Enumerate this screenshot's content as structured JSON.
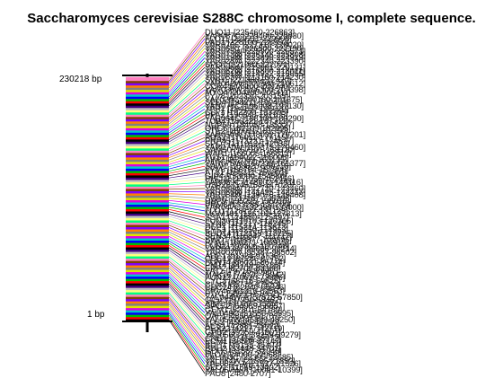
{
  "title": "Saccharomyces cerevisiae S288C chromosome I, complete sequence.",
  "top_bp_label": "230218 bp",
  "bottom_bp_label": "1 bp",
  "features": [
    "PAU8 [2480-2707]",
    "YAL067W-A [10091-10399]",
    "SEO1 [11565-13402]",
    "YAL064C-A [21527-21526]",
    "YAL064W [21566-21850]",
    "YAL063C [22395-22685]",
    "FLO9 [24000-27968]",
    "GDH3 [31567-32940]",
    "BDH2 [33448-34701]",
    "BDH1 [35155-36303]",
    "ECM1 [36509-37147]",
    "CNE1 [37464-38972]",
    "YAL056C-A [39259-39279]",
    "GPB2 [39259-41901]",
    "PEX22 [42177-42719]",
    "ACS1 [42881-45022]",
    "FLC2 [45899-48250]",
    "YAL053W [45899-48250]",
    "OAF1 [48564-51707]",
    "YAL049C [51855-52595]",
    "GEM1 [52801-54789]",
    "SPC72 [54989-56857]",
    "AIM1 [57029-57385]",
    "GCV3 [57950-58462]",
    "YAL044W-A [57518-57850]",
    "PTA1 [58695-61052]",
    "ERV46 [61316-62563]",
    "CDC24 [62840-65346]",
    "CLN3 [65778-67520]",
    "CYC3 [68716-69525]",
    "FUN12 [70620-73886]",
    "MAK16 [74020-75942]",
    "YAT1 [79718-80587]",
    "ERP2 [82709-83360]",
    "PMT4 [84749-85780]",
    "FUN14 [86031-86714]",
    "CDC19 [87286-87752]",
    "ADE1 [91324-93736]",
    "YAR002W [95387-96502]",
    "YAR003W [96806-98214]",
    "FUN21 [99306-100748]",
    "RFA1 [106271-106915]",
    "SWD1 [108877-109896]",
    "SEN34 [110847-111717]",
    "BUD14 [112155-113225]",
    "CYS3 [114250-114963]",
    "DEP1 [115214-115613]",
    "SYN8 [117217-118245]",
    "FUN30 [119103-120305]",
    "SSA1 [124880-125497]",
    "MGM101 [126102-127313]",
    "FLO1 [128127-131125]",
    "YAR047C [132399-133000]",
    "PRM8 [133288-134200]",
    "UBP9 [135225-136016]",
    "SWH1 [137187-138296]",
    "YAR064W [139076-139408]",
    "YAR066W [141425-142417]",
    "YAR068W [142720-143460]",
    "HSP26 [145154-147020]",
    "YAR069C [148002-149116]",
    "PHO11 [151056-152456]",
    "GIP4 [153090-154586]",
    "ATS1 [155311-156001]",
    "FYV5 [156754-157506]",
    "SAW1 [158620-159216]",
    "YAR075W [160238-161377]",
    "AIM2 [162089-163135]",
    "FUS1 [164022-165006]",
    "WAR1 [166005-166812]",
    "SAM50 [167101-168320]",
    "YAR071W [169375-170460]",
    "SPO7 [171012-172033]",
    "PRP45 [173231-174577]",
    "PUS2 [176011-177115]",
    "YAR050W [178032-179201]",
    "STE2 [180011-181350]",
    "ORC6 [182109-182996]",
    "NUP60 [184088-185327]",
    "TUB4 [186221-187311]",
    "YAR064C [188100-189290]",
    "PPA2 [190340-191105]",
    "CLF1 [192200-193305]",
    "YAR1 [194150-195020]",
    "YAR075C [196008-197130]",
    "SED4 [198211-199400]",
    "YAL029C [200160-201375]",
    "FYV8 [202330-203155]",
    "MYO4 [204280-205411]",
    "YAR035W [206300-207398]",
    "CCR4 [208100-209240]",
    "YAR042W [209560-210612]",
    "SWH1 [211360-212420]",
    "YAR053W [213150-214230]",
    "YAR061W [214932-216055]",
    "YAR062W [216800-218011]",
    "YAR066W [219001-220131]",
    "SPO7 [221082-222071]",
    "YAR028W [222340-223390]",
    "YAR029W [223890-224919]",
    "YAR073W [225146-225808]",
    "YAR075W [225900-226571]",
    "YAR069C [226500-227190]",
    "YAR070C [227310-228020]",
    "PAU1 [228100-228850]",
    "FLO11 [229211-229908]",
    "YAR057C [229400-229930]",
    "DUQ11 [225460-226863]"
  ]
}
